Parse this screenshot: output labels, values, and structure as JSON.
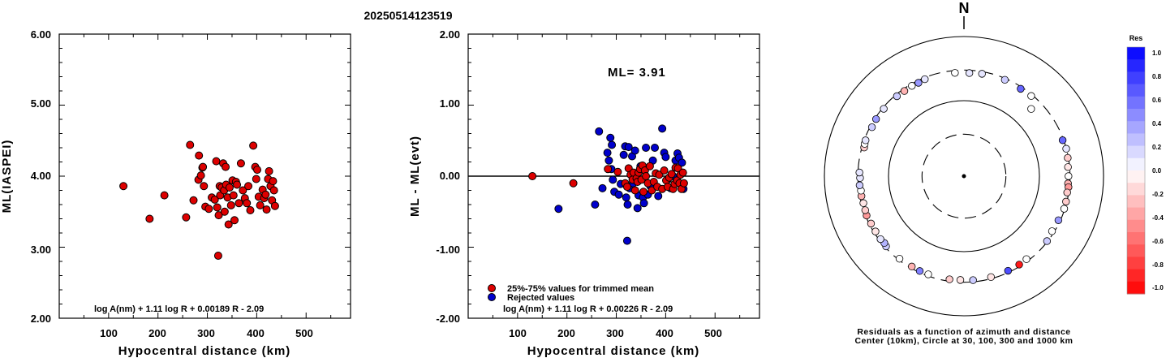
{
  "figure": {
    "title": "20250514123519"
  },
  "chart_data": [
    {
      "type": "scatter",
      "xlabel": "Hypocentral distance (km)",
      "ylabel": "ML(IASPEI)",
      "xlim": [
        0,
        590
      ],
      "ylim": [
        2.0,
        6.0
      ],
      "xticks": [
        "100",
        "200",
        "300",
        "400",
        "500"
      ],
      "yticks": [
        "2.00",
        "3.00",
        "4.00",
        "5.00",
        "6.00"
      ],
      "formula": "log A(nm) + 1.11 log R + 0.00189 R - 2.09",
      "marker_color": "#dd0000",
      "points": [
        [
          130,
          3.86
        ],
        [
          183,
          3.4
        ],
        [
          213,
          3.73
        ],
        [
          257,
          3.42
        ],
        [
          265,
          4.44
        ],
        [
          272,
          3.66
        ],
        [
          282,
          3.95
        ],
        [
          283,
          4.29
        ],
        [
          287,
          4.01
        ],
        [
          290,
          4.12
        ],
        [
          291,
          4.13
        ],
        [
          293,
          3.86
        ],
        [
          296,
          3.57
        ],
        [
          303,
          3.54
        ],
        [
          309,
          3.7
        ],
        [
          315,
          3.67
        ],
        [
          318,
          4.21
        ],
        [
          320,
          3.56
        ],
        [
          322,
          2.88
        ],
        [
          323,
          3.45
        ],
        [
          325,
          3.86
        ],
        [
          326,
          3.73
        ],
        [
          329,
          3.84
        ],
        [
          332,
          4.18
        ],
        [
          334,
          3.8
        ],
        [
          335,
          3.5
        ],
        [
          337,
          4.13
        ],
        [
          338,
          3.88
        ],
        [
          341,
          3.7
        ],
        [
          343,
          3.32
        ],
        [
          345,
          3.84
        ],
        [
          348,
          3.59
        ],
        [
          351,
          3.94
        ],
        [
          353,
          3.73
        ],
        [
          355,
          3.38
        ],
        [
          358,
          3.92
        ],
        [
          360,
          3.88
        ],
        [
          364,
          3.62
        ],
        [
          368,
          4.18
        ],
        [
          372,
          3.8
        ],
        [
          376,
          3.69
        ],
        [
          380,
          3.62
        ],
        [
          383,
          3.86
        ],
        [
          387,
          3.52
        ],
        [
          393,
          4.43
        ],
        [
          397,
          4.13
        ],
        [
          399,
          3.96
        ],
        [
          401,
          4.09
        ],
        [
          404,
          3.71
        ],
        [
          407,
          3.59
        ],
        [
          412,
          3.81
        ],
        [
          415,
          3.69
        ],
        [
          418,
          3.74
        ],
        [
          420,
          3.53
        ],
        [
          423,
          3.96
        ],
        [
          425,
          4.07
        ],
        [
          428,
          3.86
        ],
        [
          431,
          3.66
        ],
        [
          433,
          3.93
        ],
        [
          435,
          3.8
        ],
        [
          437,
          3.58
        ]
      ]
    },
    {
      "type": "scatter",
      "xlabel": "Hypocentral distance (km)",
      "ylabel": "ML - ML(evt)",
      "xlim": [
        0,
        590
      ],
      "ylim": [
        -2.0,
        2.0
      ],
      "xticks": [
        "100",
        "200",
        "300",
        "400",
        "500"
      ],
      "yticks": [
        "-2.00",
        "-1.00",
        "0.00",
        "1.00",
        "2.00"
      ],
      "zero_line": 0.0,
      "annotation": "ML= 3.91",
      "legend": [
        {
          "label": "25%-75% values for trimmed mean",
          "color": "#dd0000"
        },
        {
          "label": "Rejected values",
          "color": "#0000cc"
        }
      ],
      "formula": "log A(nm) + 1.11 log R + 0.00226 R - 2.09",
      "series": [
        {
          "name": "25%-75% values for trimmed mean",
          "color": "#dd0000",
          "points": [
            [
              130,
              0.0
            ],
            [
              213,
              -0.1
            ],
            [
              283,
              0.1
            ],
            [
              303,
              0.06
            ],
            [
              318,
              -0.1
            ],
            [
              322,
              -0.15
            ],
            [
              325,
              0.11
            ],
            [
              329,
              0.02
            ],
            [
              333,
              -0.05
            ],
            [
              335,
              0.05
            ],
            [
              338,
              -0.2
            ],
            [
              341,
              -0.03
            ],
            [
              343,
              -0.08
            ],
            [
              345,
              0.05
            ],
            [
              348,
              0.1
            ],
            [
              351,
              -0.05
            ],
            [
              353,
              0.15
            ],
            [
              355,
              -0.22
            ],
            [
              358,
              0.08
            ],
            [
              360,
              0.0
            ],
            [
              364,
              -0.1
            ],
            [
              368,
              0.14
            ],
            [
              372,
              -0.2
            ],
            [
              376,
              -0.08
            ],
            [
              380,
              0.04
            ],
            [
              383,
              -0.15
            ],
            [
              387,
              0.02
            ],
            [
              393,
              -0.18
            ],
            [
              397,
              0.08
            ],
            [
              401,
              -0.06
            ],
            [
              404,
              -0.15
            ],
            [
              407,
              -0.02
            ],
            [
              412,
              0.03
            ],
            [
              415,
              -0.18
            ],
            [
              418,
              -0.11
            ],
            [
              420,
              0.12
            ],
            [
              423,
              -0.06
            ],
            [
              425,
              0.11
            ],
            [
              428,
              -0.1
            ],
            [
              430,
              0.02
            ],
            [
              432,
              -0.18
            ],
            [
              435,
              0.05
            ],
            [
              437,
              -0.1
            ]
          ]
        },
        {
          "name": "Rejected values",
          "color": "#0000cc",
          "points": [
            [
              183,
              -0.46
            ],
            [
              257,
              -0.4
            ],
            [
              265,
              0.63
            ],
            [
              272,
              -0.17
            ],
            [
              282,
              0.33
            ],
            [
              285,
              0.22
            ],
            [
              288,
              0.54
            ],
            [
              290,
              0.1
            ],
            [
              291,
              0.44
            ],
            [
              293,
              -0.05
            ],
            [
              296,
              -0.22
            ],
            [
              305,
              -0.26
            ],
            [
              309,
              -0.11
            ],
            [
              315,
              0.3
            ],
            [
              318,
              0.42
            ],
            [
              320,
              -0.3
            ],
            [
              322,
              -0.91
            ],
            [
              323,
              -0.4
            ],
            [
              325,
              0.41
            ],
            [
              327,
              -0.17
            ],
            [
              332,
              0.28
            ],
            [
              334,
              -0.1
            ],
            [
              338,
              0.36
            ],
            [
              343,
              -0.45
            ],
            [
              345,
              -0.27
            ],
            [
              349,
              0.14
            ],
            [
              354,
              -0.3
            ],
            [
              356,
              -0.38
            ],
            [
              360,
              0.4
            ],
            [
              364,
              -0.26
            ],
            [
              369,
              -0.14
            ],
            [
              374,
              0.22
            ],
            [
              378,
              0.4
            ],
            [
              385,
              -0.28
            ],
            [
              393,
              0.67
            ],
            [
              397,
              0.33
            ],
            [
              400,
              0.27
            ],
            [
              404,
              -0.05
            ],
            [
              410,
              -0.17
            ],
            [
              415,
              0.0
            ],
            [
              420,
              0.22
            ],
            [
              424,
              0.32
            ],
            [
              427,
              0.26
            ],
            [
              430,
              -0.11
            ],
            [
              433,
              0.19
            ],
            [
              436,
              -0.18
            ]
          ]
        }
      ]
    },
    {
      "type": "polar-residuals",
      "north_label": "N",
      "caption_line1": "Residuals as a function of azimuth and distance",
      "caption_line2": "Center (10km), Circle at 30, 100, 300 and 1000 km",
      "ring_distances_km": [
        30,
        100,
        300,
        1000
      ],
      "ring_styles": [
        "dashed",
        "solid",
        "dashed",
        "solid"
      ],
      "station_note": "each station: azimuth in degrees, hypocentral distance in km, residual",
      "stations": [
        [
          355,
          275,
          0.0
        ],
        [
          3,
          271,
          0.1
        ],
        [
          10,
          278,
          0.1
        ],
        [
          33,
          280,
          0.6
        ],
        [
          23,
          285,
          0.2
        ],
        [
          45,
          202,
          0.0
        ],
        [
          40,
          285,
          0.0
        ],
        [
          70,
          289,
          0.6
        ],
        [
          75,
          298,
          0.1
        ],
        [
          80,
          293,
          -0.2
        ],
        [
          85,
          283,
          -0.1
        ],
        [
          90,
          284,
          0.0
        ],
        [
          94,
          282,
          -0.3
        ],
        [
          96,
          290,
          -0.4
        ],
        [
          99,
          284,
          -0.2
        ],
        [
          104,
          291,
          -0.2
        ],
        [
          108,
          293,
          0.0
        ],
        [
          115,
          281,
          0.4
        ],
        [
          122,
          277,
          0.0
        ],
        [
          128,
          293,
          0.2
        ],
        [
          143,
          277,
          0.0
        ],
        [
          148,
          281,
          -0.9
        ],
        [
          155,
          282,
          0.7
        ],
        [
          165,
          283,
          -0.1
        ],
        [
          175,
          282,
          0.2
        ],
        [
          182,
          277,
          -0.1
        ],
        [
          188,
          280,
          -0.2
        ],
        [
          200,
          283,
          0.0
        ],
        [
          210,
          282,
          -0.3
        ],
        [
          205,
          285,
          0.5
        ],
        [
          218,
          286,
          0.0
        ],
        [
          228,
          287,
          0.2
        ],
        [
          230,
          278,
          0.3
        ],
        [
          233,
          284,
          0.1
        ],
        [
          238,
          282,
          -0.1
        ],
        [
          243,
          282,
          -0.2
        ],
        [
          248,
          289,
          -0.4
        ],
        [
          251,
          283,
          -0.2
        ],
        [
          255,
          280,
          -0.1
        ],
        [
          259,
          283,
          -0.3
        ],
        [
          262,
          279,
          0.0
        ],
        [
          265,
          286,
          0.2
        ],
        [
          269,
          278,
          0.1
        ],
        [
          272,
          285,
          0.1
        ],
        [
          286,
          277,
          -0.2
        ],
        [
          288,
          283,
          0.0
        ],
        [
          290,
          286,
          0.1
        ],
        [
          298,
          281,
          0.2
        ],
        [
          303,
          287,
          0.4
        ],
        [
          310,
          286,
          0.1
        ],
        [
          320,
          282,
          0.2
        ],
        [
          325,
          278,
          -0.3
        ],
        [
          330,
          281,
          0.0
        ],
        [
          334,
          277,
          0.4
        ],
        [
          338,
          284,
          0.1
        ]
      ],
      "colorbar": {
        "title": "Res",
        "labels": [
          "1.0",
          "0.8",
          "0.6",
          "0.4",
          "0.2",
          "0.0",
          "-0.2",
          "-0.4",
          "-0.6",
          "-0.8",
          "-1.0"
        ]
      }
    }
  ]
}
